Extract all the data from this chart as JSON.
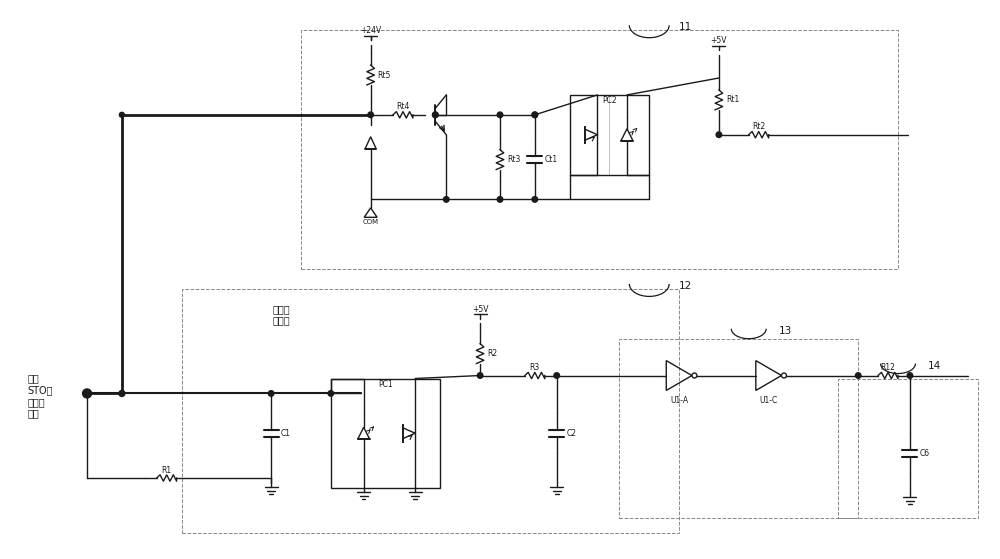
{
  "bg": "#ffffff",
  "lc": "#1a1a1a",
  "bc": "#888888",
  "fw": 10.0,
  "fh": 5.59,
  "xl": [
    0,
    100
  ],
  "yl": [
    0,
    55.9
  ],
  "labels": {
    "sig": "第一\nSTO功\n能触发\n信号",
    "opto": "第一光\n耦电路",
    "pc1": "PC1",
    "pc2": "PC2",
    "r1": "R1",
    "r2": "R2",
    "r3": "R3",
    "rt1": "Rt1",
    "rt2": "Rt2",
    "rt3": "Rt3",
    "rt4": "Rt4",
    "rt5": "Rt5",
    "ct1": "Ct1",
    "c1": "C1",
    "c2": "C2",
    "c6": "C6",
    "r12": "R12",
    "u1a": "U1-A",
    "u1c": "U1-C",
    "com": "COM",
    "v24": "+24V",
    "v5a": "+5V",
    "v5b": "+5V",
    "n11": "11",
    "n12": "12",
    "n13": "13",
    "n14": "14"
  }
}
